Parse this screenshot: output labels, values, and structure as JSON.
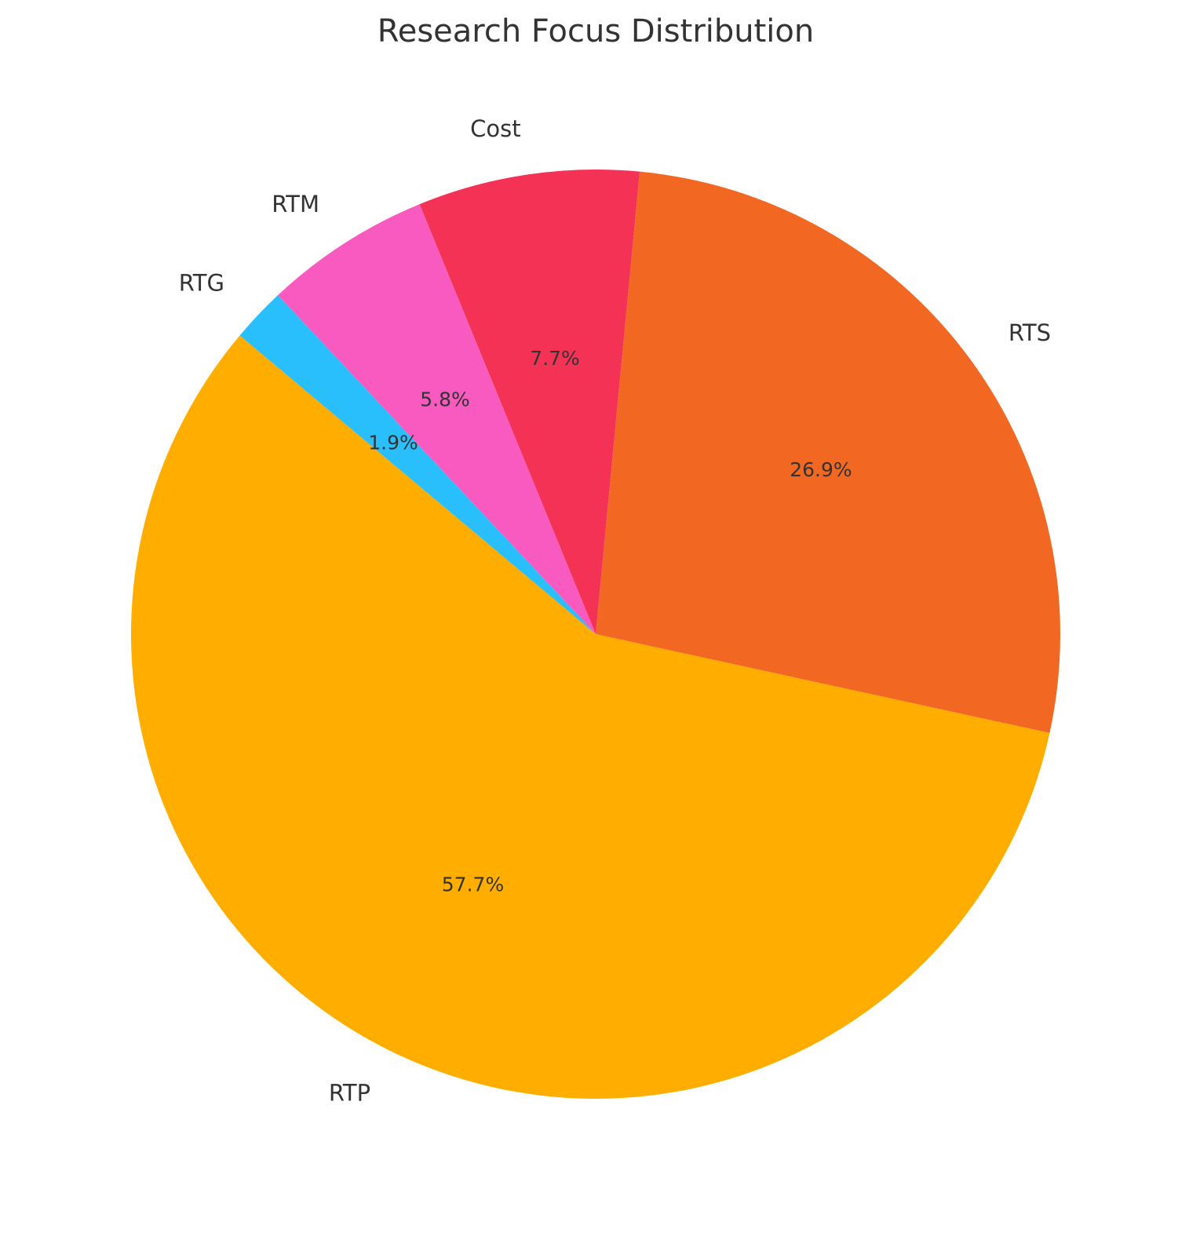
{
  "chart_data": {
    "type": "pie",
    "title": "Research Focus Distribution",
    "start_angle_deg": 140,
    "direction": "counterclockwise",
    "slices": [
      {
        "label": "RTP",
        "value": 57.7,
        "pct_text": "57.7%",
        "color": "#FFAE00"
      },
      {
        "label": "RTS",
        "value": 26.9,
        "pct_text": "26.9%",
        "color": "#F26822"
      },
      {
        "label": "Cost",
        "value": 7.7,
        "pct_text": "7.7%",
        "color": "#F43255"
      },
      {
        "label": "RTM",
        "value": 5.8,
        "pct_text": "5.8%",
        "color": "#F85AC0"
      },
      {
        "label": "RTG",
        "value": 1.9,
        "pct_text": "1.9%",
        "color": "#29BEFC"
      }
    ]
  }
}
